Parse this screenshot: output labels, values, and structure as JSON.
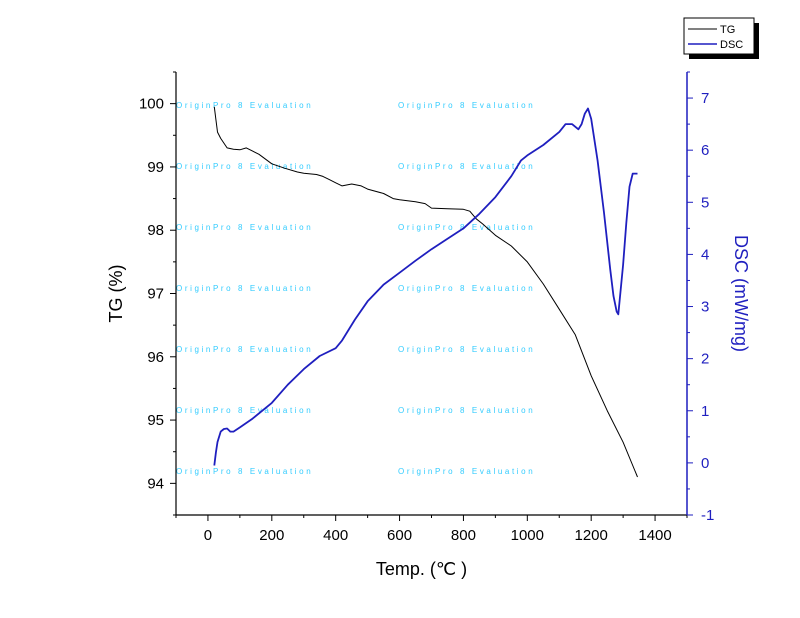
{
  "chart_data": {
    "type": "line",
    "title": "",
    "xlabel": "Temp. (℃ )",
    "ylabel_left": "TG (%)",
    "ylabel_right": "DSC (mW/mg)",
    "xlim": [
      -100,
      1500
    ],
    "ylim_left": [
      93.5,
      100.5
    ],
    "ylim_right": [
      -1,
      7.5
    ],
    "x_ticks": [
      "0",
      "200",
      "400",
      "600",
      "800",
      "1000",
      "1200",
      "1400"
    ],
    "x_tick_values": [
      0,
      200,
      400,
      600,
      800,
      1000,
      1200,
      1400
    ],
    "y_left_ticks": [
      "94",
      "95",
      "96",
      "97",
      "98",
      "99",
      "100"
    ],
    "y_left_tick_values": [
      94,
      95,
      96,
      97,
      98,
      99,
      100
    ],
    "y_right_ticks": [
      "-1",
      "0",
      "1",
      "2",
      "3",
      "4",
      "5",
      "6",
      "7"
    ],
    "y_right_tick_values": [
      -1,
      0,
      1,
      2,
      3,
      4,
      5,
      6,
      7
    ],
    "legend_position": "top-right",
    "grid": false,
    "colors": {
      "tg": "#000000",
      "dsc": "#1f1fbf",
      "right_axis": "#1f1fbf",
      "watermark": "#33ccff"
    },
    "watermark_text": "OriginPro 8 Evaluation",
    "series": [
      {
        "name": "TG",
        "axis": "left",
        "x": [
          20,
          25,
          30,
          40,
          60,
          80,
          100,
          120,
          140,
          160,
          200,
          240,
          280,
          300,
          340,
          360,
          380,
          400,
          420,
          450,
          480,
          500,
          550,
          580,
          600,
          650,
          680,
          700,
          750,
          800,
          820,
          840,
          860,
          900,
          950,
          1000,
          1050,
          1100,
          1150,
          1200,
          1250,
          1300,
          1345
        ],
        "y": [
          99.95,
          99.75,
          99.55,
          99.45,
          99.3,
          99.28,
          99.27,
          99.3,
          99.25,
          99.2,
          99.05,
          98.98,
          98.92,
          98.9,
          98.88,
          98.85,
          98.8,
          98.75,
          98.7,
          98.73,
          98.7,
          98.65,
          98.58,
          98.5,
          98.48,
          98.45,
          98.42,
          98.35,
          98.34,
          98.33,
          98.3,
          98.18,
          98.1,
          97.92,
          97.75,
          97.5,
          97.15,
          96.75,
          96.35,
          95.7,
          95.15,
          94.65,
          94.1
        ]
      },
      {
        "name": "DSC",
        "axis": "right",
        "x": [
          20,
          25,
          30,
          40,
          50,
          60,
          70,
          80,
          100,
          140,
          200,
          250,
          300,
          350,
          400,
          420,
          440,
          460,
          500,
          550,
          600,
          650,
          700,
          750,
          800,
          850,
          900,
          950,
          980,
          1000,
          1050,
          1100,
          1120,
          1140,
          1160,
          1170,
          1180,
          1190,
          1200,
          1210,
          1220,
          1240,
          1260,
          1270,
          1280,
          1285,
          1300,
          1310,
          1320,
          1330,
          1340,
          1345
        ],
        "y": [
          -0.05,
          0.2,
          0.4,
          0.6,
          0.65,
          0.66,
          0.6,
          0.6,
          0.68,
          0.85,
          1.15,
          1.5,
          1.8,
          2.05,
          2.2,
          2.35,
          2.55,
          2.75,
          3.1,
          3.42,
          3.65,
          3.88,
          4.1,
          4.3,
          4.5,
          4.78,
          5.1,
          5.5,
          5.8,
          5.9,
          6.1,
          6.35,
          6.5,
          6.5,
          6.4,
          6.5,
          6.7,
          6.8,
          6.6,
          6.2,
          5.8,
          4.8,
          3.7,
          3.2,
          2.9,
          2.85,
          3.8,
          4.6,
          5.3,
          5.55,
          5.55,
          5.55
        ]
      }
    ]
  }
}
